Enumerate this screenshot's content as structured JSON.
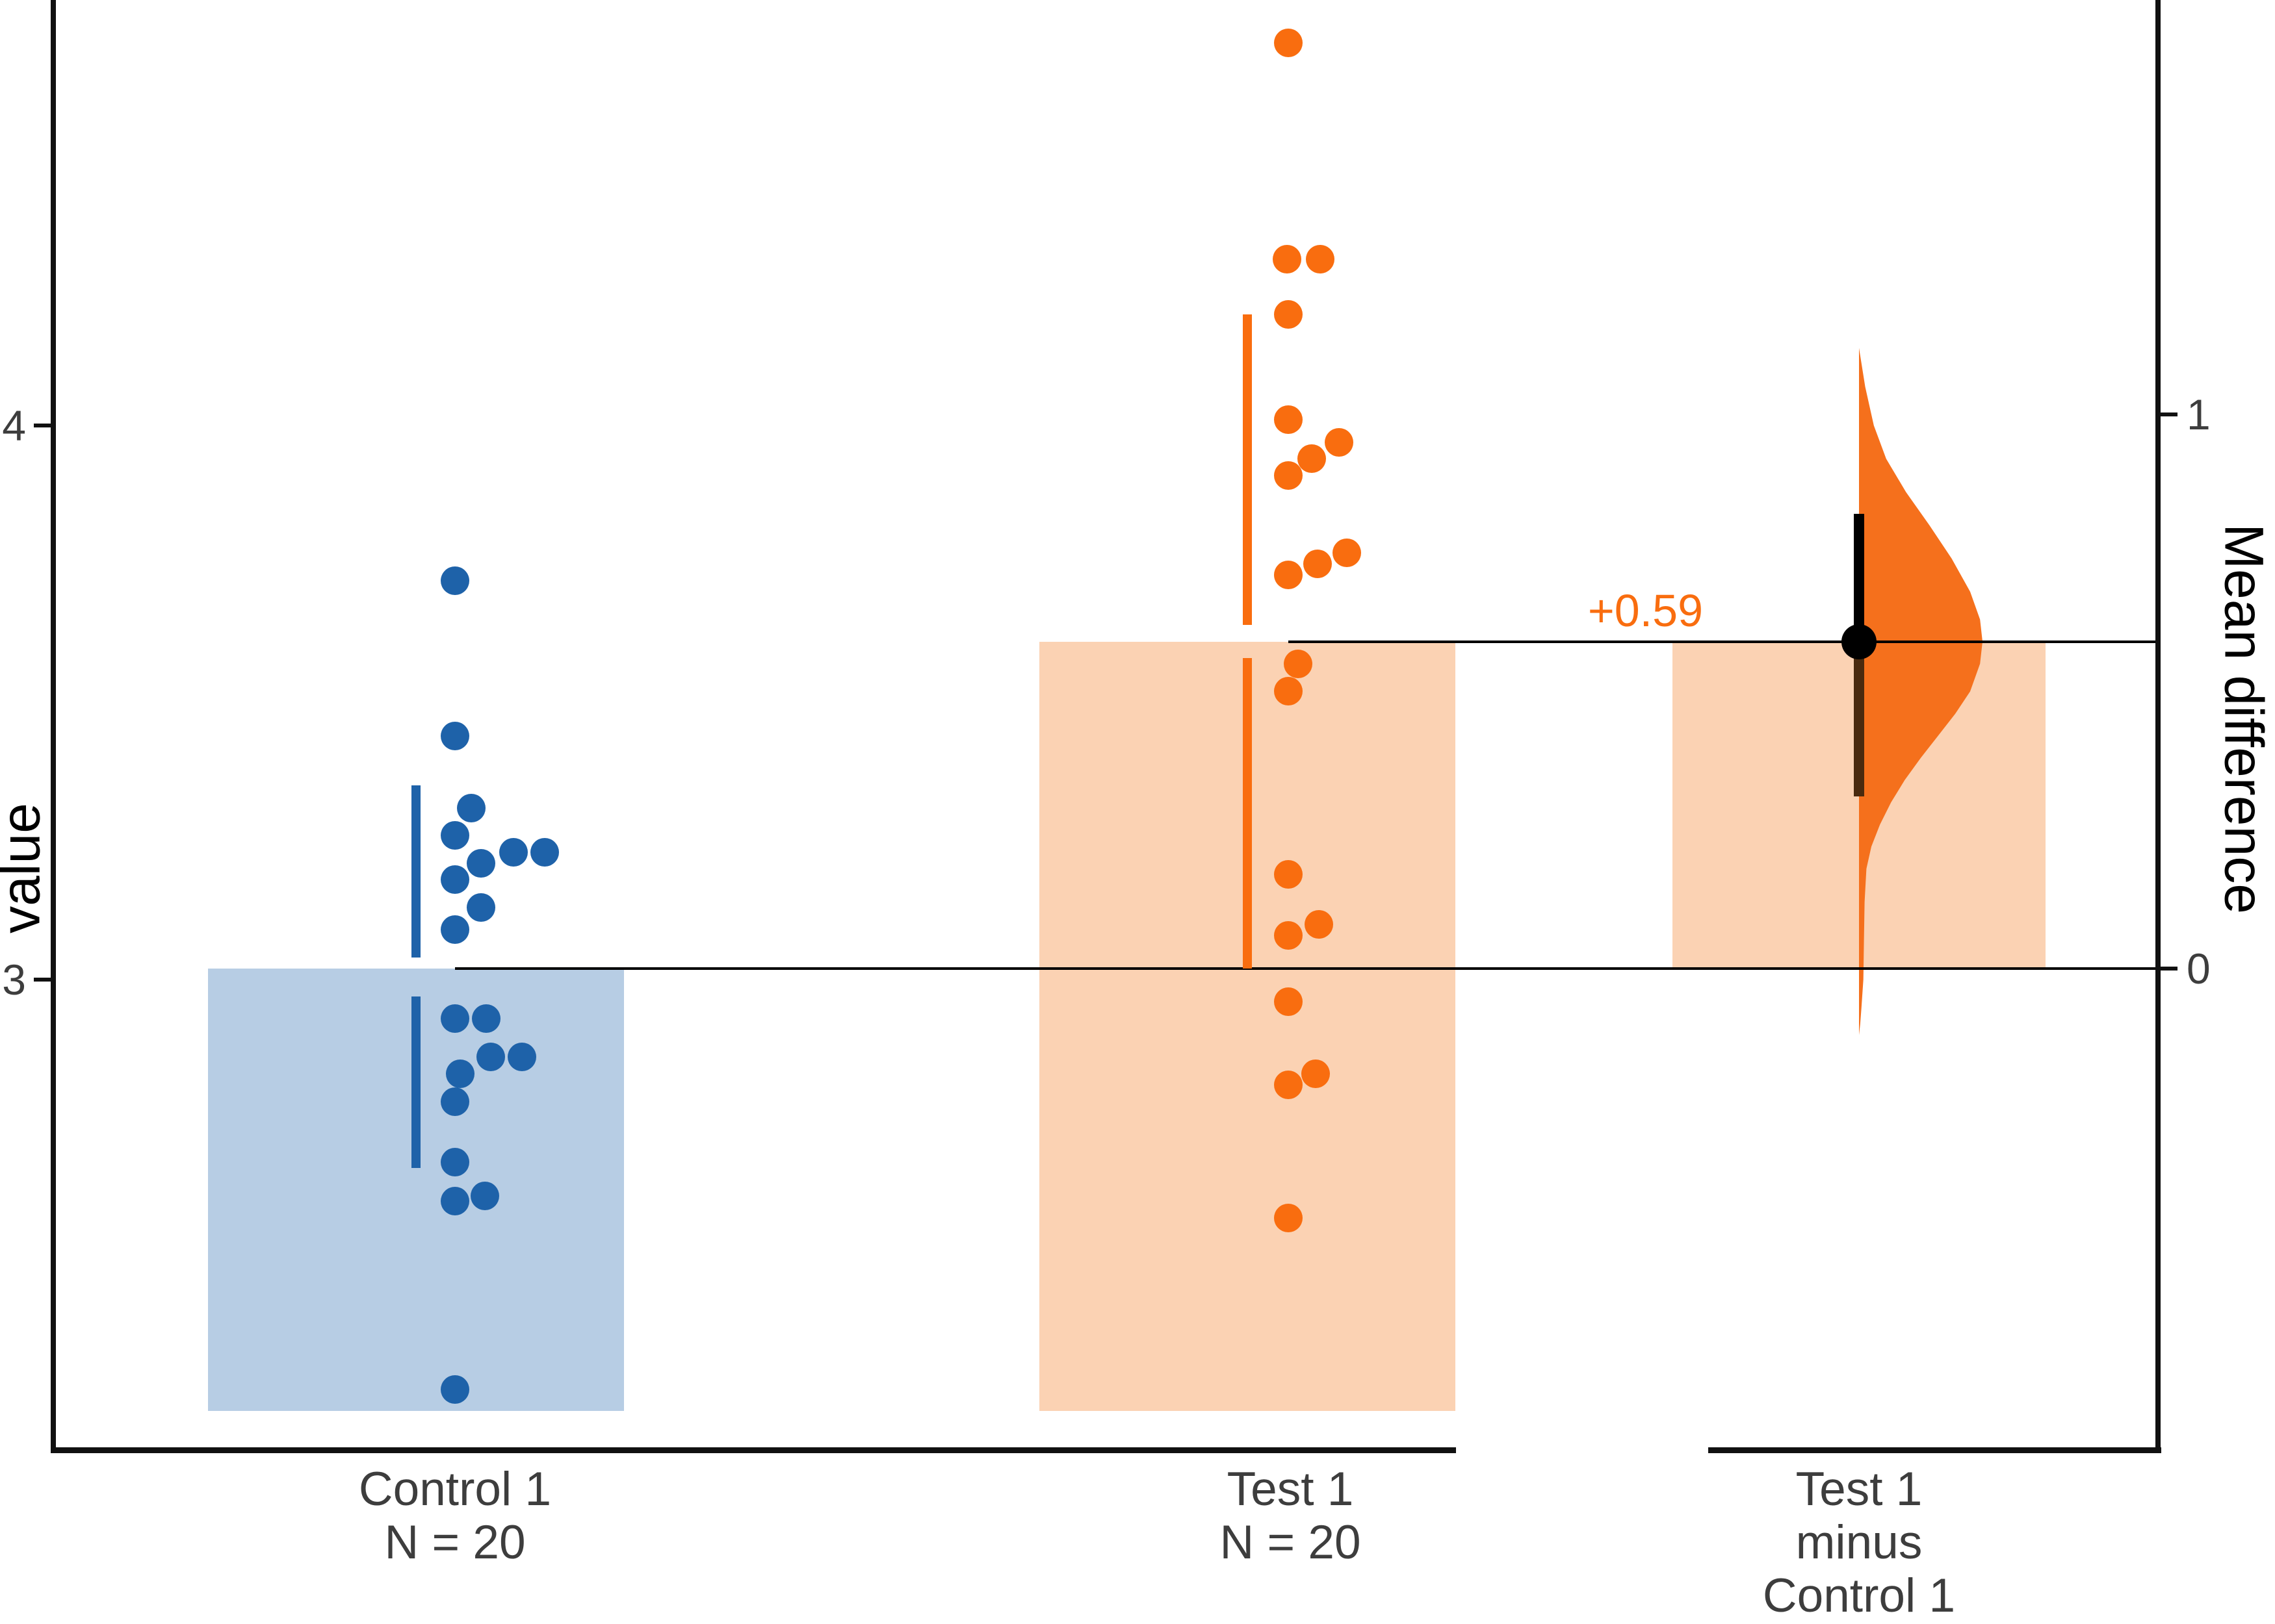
{
  "figure": {
    "kind": "estimation plot (two-group Gardner-Altman, swarm + mean difference)",
    "background": "#ffffff",
    "colors": {
      "axis": "#111111",
      "tick_text": "#3D3D3D",
      "control": "#1E62A9",
      "control_fill": "#B7CDE4",
      "test": "#F96D0F",
      "test_fill": "#FBD2B3",
      "violin_fill": "#F5701C",
      "ci_line_upper": "#000000",
      "ci_line_lower": "#4A2A0E",
      "ci_dot": "#000000",
      "ref_line": "#000000"
    }
  },
  "chart_data": {
    "type": "scatter",
    "subtype": "estimation-swarm-plot",
    "title": "",
    "xlabel": "",
    "y_axis_left": {
      "title": "value",
      "ticks": [
        {
          "label": "4",
          "value": 4
        },
        {
          "label": "3",
          "value": 3
        }
      ]
    },
    "y_axis_right": {
      "title": "Mean difference",
      "ticks": [
        {
          "label": "1",
          "value": 1
        },
        {
          "label": "0",
          "value": 0
        }
      ]
    },
    "x_axis": {
      "groups": [
        {
          "id": "control",
          "lines": [
            "Control 1",
            "N = 20"
          ]
        },
        {
          "id": "test",
          "lines": [
            "Test 1",
            "N = 20"
          ]
        },
        {
          "id": "diff",
          "lines": [
            "Test 1",
            "minus",
            "Control 1"
          ]
        }
      ]
    },
    "series": [
      {
        "name": "Control 1",
        "n": 20,
        "mean": 3.02,
        "values": [
          3.72,
          3.44,
          3.31,
          3.26,
          3.23,
          3.23,
          3.21,
          3.18,
          3.13,
          3.09,
          2.93,
          2.93,
          2.86,
          2.86,
          2.83,
          2.78,
          2.67,
          2.61,
          2.6,
          2.26
        ],
        "sd_line_segments": [
          [
            3.35,
            3.04
          ],
          [
            2.97,
            2.66
          ]
        ],
        "points": [
          {
            "v": 3.72,
            "dx": 60
          },
          {
            "v": 3.44,
            "dx": 60
          },
          {
            "v": 3.31,
            "dx": 85
          },
          {
            "v": 3.26,
            "dx": 60
          },
          {
            "v": 3.23,
            "dx": 150
          },
          {
            "v": 3.23,
            "dx": 198
          },
          {
            "v": 3.21,
            "dx": 100
          },
          {
            "v": 3.18,
            "dx": 60
          },
          {
            "v": 3.13,
            "dx": 100
          },
          {
            "v": 3.09,
            "dx": 60
          },
          {
            "v": 2.93,
            "dx": 60
          },
          {
            "v": 2.93,
            "dx": 108
          },
          {
            "v": 2.86,
            "dx": 115
          },
          {
            "v": 2.86,
            "dx": 163
          },
          {
            "v": 2.83,
            "dx": 68
          },
          {
            "v": 2.78,
            "dx": 60
          },
          {
            "v": 2.67,
            "dx": 60
          },
          {
            "v": 2.61,
            "dx": 106
          },
          {
            "v": 2.6,
            "dx": 60
          },
          {
            "v": 2.26,
            "dx": 60
          }
        ]
      },
      {
        "name": "Test 1",
        "n": 20,
        "mean": 3.61,
        "values": [
          4.69,
          4.3,
          4.3,
          4.2,
          4.01,
          3.97,
          3.94,
          3.91,
          3.77,
          3.75,
          3.73,
          3.57,
          3.52,
          3.19,
          3.1,
          3.08,
          2.96,
          2.83,
          2.81,
          2.57
        ],
        "sd_line_segments": [
          [
            4.2,
            3.64
          ],
          [
            3.58,
            3.02
          ]
        ],
        "points": [
          {
            "v": 4.69,
            "dx": 63
          },
          {
            "v": 4.3,
            "dx": 61
          },
          {
            "v": 4.3,
            "dx": 112
          },
          {
            "v": 4.2,
            "dx": 63
          },
          {
            "v": 4.01,
            "dx": 63
          },
          {
            "v": 3.97,
            "dx": 141
          },
          {
            "v": 3.94,
            "dx": 99
          },
          {
            "v": 3.91,
            "dx": 63
          },
          {
            "v": 3.77,
            "dx": 153
          },
          {
            "v": 3.75,
            "dx": 108
          },
          {
            "v": 3.73,
            "dx": 63
          },
          {
            "v": 3.57,
            "dx": 78
          },
          {
            "v": 3.52,
            "dx": 63
          },
          {
            "v": 3.19,
            "dx": 63
          },
          {
            "v": 3.1,
            "dx": 110
          },
          {
            "v": 3.08,
            "dx": 63
          },
          {
            "v": 2.96,
            "dx": 63
          },
          {
            "v": 2.83,
            "dx": 105
          },
          {
            "v": 2.81,
            "dx": 63
          },
          {
            "v": 2.57,
            "dx": 63
          }
        ]
      }
    ],
    "effect": {
      "comparison": "Test 1 minus Control 1",
      "annotation": "+0.59",
      "mean_difference": 0.59,
      "ci_low": 0.31,
      "ci_high": 0.82,
      "violin_profile": [
        [
          1.12,
          0.0
        ],
        [
          1.05,
          0.05
        ],
        [
          0.98,
          0.12
        ],
        [
          0.92,
          0.22
        ],
        [
          0.86,
          0.38
        ],
        [
          0.8,
          0.57
        ],
        [
          0.74,
          0.75
        ],
        [
          0.68,
          0.9
        ],
        [
          0.63,
          0.98
        ],
        [
          0.59,
          1.0
        ],
        [
          0.55,
          0.98
        ],
        [
          0.5,
          0.9
        ],
        [
          0.46,
          0.78
        ],
        [
          0.42,
          0.64
        ],
        [
          0.38,
          0.5
        ],
        [
          0.34,
          0.37
        ],
        [
          0.3,
          0.26
        ],
        [
          0.26,
          0.17
        ],
        [
          0.22,
          0.1
        ],
        [
          0.18,
          0.06
        ],
        [
          0.12,
          0.045
        ],
        [
          0.05,
          0.04
        ],
        [
          -0.02,
          0.035
        ],
        [
          -0.07,
          0.02
        ],
        [
          -0.1,
          0.01
        ],
        [
          -0.12,
          0.0
        ]
      ]
    },
    "layout_hints": {
      "ylim_left": [
        2.2,
        4.8
      ],
      "grid": false,
      "legend": false
    },
    "pixel_map": {
      "y_value_3": 1508,
      "y_value_4": 655,
      "diff_zero_value": 3.02,
      "axis_bottom_y": 2228,
      "axis_thickness": 9,
      "left_axis_x": 86,
      "right_axis_x": 3316,
      "main_axis_x": [
        78,
        2240
      ],
      "diff_axis_x": [
        2628,
        3325
      ],
      "groups_x": {
        "control": 640,
        "test": 1919,
        "diff": 2860
      },
      "label_cx": {
        "control": 700,
        "test": 1985,
        "diff": 2860
      },
      "bar_half_width": 320,
      "diff_bar_half_width": 287,
      "bar_bottom_y": 2172,
      "dot_radius": 22,
      "ci_dot_radius": 27,
      "gap_line_thickness": 14,
      "ref_line_thickness": 4,
      "ci_line_thickness": 16,
      "violin_max_halfwidth": 190,
      "tick_len": 26,
      "tick_thickness": 6,
      "label_top_y": 2252,
      "label_line_height": 82,
      "zero_line_x_start": 700,
      "mean_line_x_start": 1982,
      "annot_right_x": 2620
    }
  }
}
